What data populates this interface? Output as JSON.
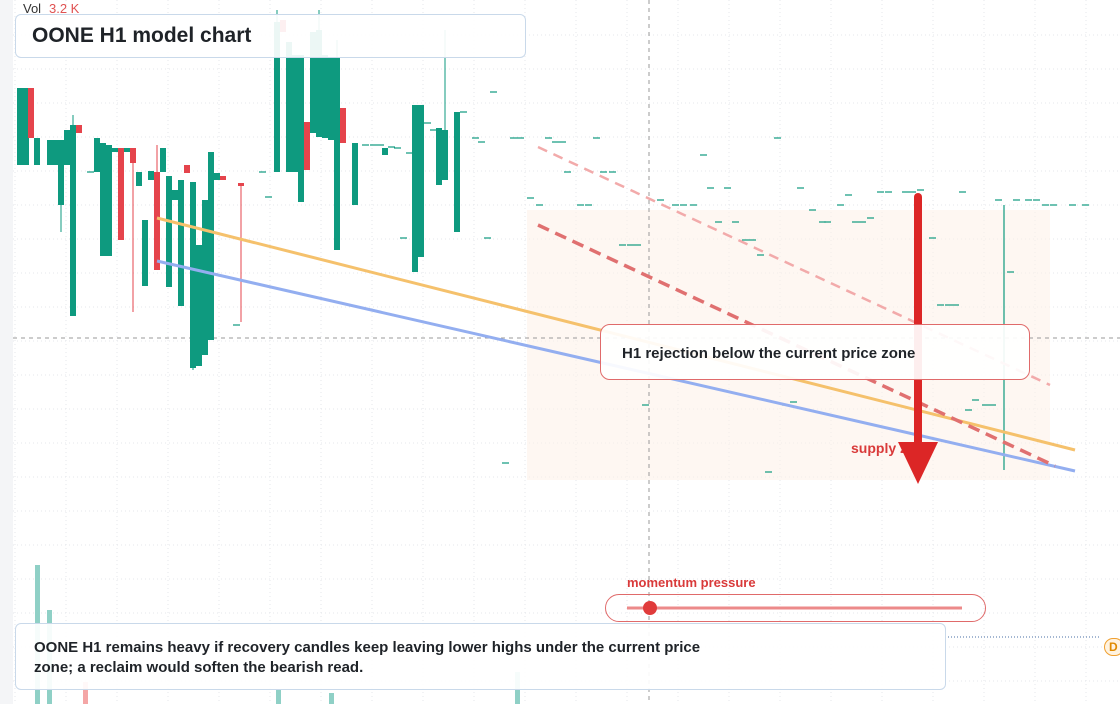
{
  "header": {
    "vol_label": "Vol",
    "vol_value": "3.2 K",
    "title": "OONE H1 model chart"
  },
  "annotations": {
    "rejection": "H1 rejection below the current price zone",
    "zone": "supply zone",
    "momentum": "momentum pressure",
    "note": "OONE H1 remains heavy if recovery candles keep leaving lower highs under the current price zone; a reclaim would soften the bearish read.",
    "edge_tag": "D"
  }
}
